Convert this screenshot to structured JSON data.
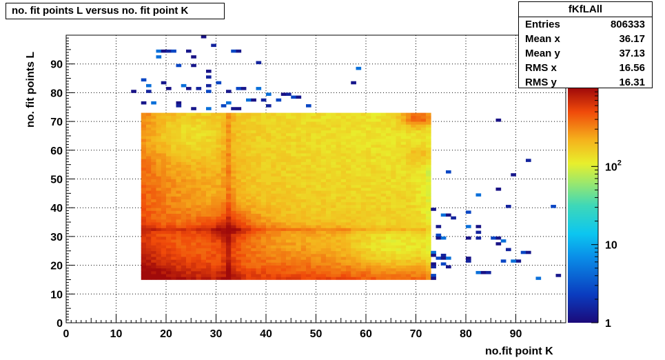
{
  "title": "no. fit points L versus no. fit point K",
  "stats": {
    "name": "fKfLAll",
    "rows": [
      {
        "label": "Entries",
        "value": "806333"
      },
      {
        "label": "Mean x",
        "value": "36.17"
      },
      {
        "label": "Mean y",
        "value": "37.13"
      },
      {
        "label": "RMS x",
        "value": "16.56"
      },
      {
        "label": "RMS y",
        "value": "16.31"
      }
    ]
  },
  "chart_data": {
    "type": "heatmap",
    "title": "no. fit points L versus no. fit point K",
    "xlabel": "no.fit point K",
    "ylabel": "no. fit points  L",
    "xlim": [
      0,
      100
    ],
    "ylim": [
      0,
      100
    ],
    "x_ticks": [
      0,
      10,
      20,
      30,
      40,
      50,
      60,
      70,
      80,
      90
    ],
    "y_ticks": [
      0,
      10,
      20,
      30,
      40,
      50,
      60,
      70,
      80,
      90
    ],
    "grid": true,
    "color_scale": "log",
    "zlim": [
      1,
      1000
    ],
    "z_ticks": [
      {
        "value": 1,
        "label": "1"
      },
      {
        "value": 10,
        "label": "10"
      },
      {
        "value": 100,
        "label": "10^2"
      }
    ],
    "dense_region": {
      "x_range": [
        15,
        73
      ],
      "y_range": [
        15,
        73
      ],
      "peaks": [
        {
          "x": 32,
          "y": 32,
          "level": "max"
        },
        {
          "x": 17,
          "y": 17,
          "level": "high"
        },
        {
          "x": 70,
          "y": 71,
          "level": "high"
        }
      ]
    },
    "sparse_points": [
      [
        27,
        99
      ],
      [
        29,
        96
      ],
      [
        33,
        94
      ],
      [
        34,
        94
      ],
      [
        18,
        94
      ],
      [
        19,
        94
      ],
      [
        20,
        94
      ],
      [
        21,
        94
      ],
      [
        24,
        94
      ],
      [
        18,
        92
      ],
      [
        25,
        92
      ],
      [
        38,
        90
      ],
      [
        22,
        89
      ],
      [
        25,
        89
      ],
      [
        58,
        88
      ],
      [
        28,
        87
      ],
      [
        28,
        85
      ],
      [
        15,
        84
      ],
      [
        19,
        83
      ],
      [
        23,
        82
      ],
      [
        24,
        81
      ],
      [
        28,
        82
      ],
      [
        30,
        83
      ],
      [
        57,
        83
      ],
      [
        16,
        82
      ],
      [
        20,
        81
      ],
      [
        26,
        81
      ],
      [
        34,
        81
      ],
      [
        35,
        81
      ],
      [
        38,
        81
      ],
      [
        13,
        80
      ],
      [
        16,
        80
      ],
      [
        28,
        80
      ],
      [
        32,
        80
      ],
      [
        40,
        79
      ],
      [
        43,
        79
      ],
      [
        44,
        79
      ],
      [
        45,
        78
      ],
      [
        46,
        78
      ],
      [
        36,
        77
      ],
      [
        37,
        77
      ],
      [
        39,
        77
      ],
      [
        42,
        77
      ],
      [
        15,
        76
      ],
      [
        17,
        76
      ],
      [
        22,
        76
      ],
      [
        22,
        75
      ],
      [
        31,
        75
      ],
      [
        33,
        74
      ],
      [
        32,
        76
      ],
      [
        34,
        74
      ],
      [
        40,
        75
      ],
      [
        48,
        75
      ],
      [
        25,
        74
      ],
      [
        28,
        74
      ],
      [
        86,
        70
      ],
      [
        92,
        56
      ],
      [
        76,
        52
      ],
      [
        89,
        51
      ],
      [
        82,
        44
      ],
      [
        86,
        46
      ],
      [
        88,
        40
      ],
      [
        97,
        40
      ],
      [
        73,
        39
      ],
      [
        75,
        37
      ],
      [
        76,
        37
      ],
      [
        77,
        36
      ],
      [
        80,
        38
      ],
      [
        74,
        33
      ],
      [
        80,
        33
      ],
      [
        82,
        33
      ],
      [
        82,
        31
      ],
      [
        74,
        30
      ],
      [
        74,
        29
      ],
      [
        75,
        29
      ],
      [
        80,
        29
      ],
      [
        82,
        29
      ],
      [
        85,
        29
      ],
      [
        86,
        29
      ],
      [
        87,
        28
      ],
      [
        86,
        27
      ],
      [
        88,
        25
      ],
      [
        91,
        24
      ],
      [
        92,
        24
      ],
      [
        73,
        24
      ],
      [
        73,
        23
      ],
      [
        75,
        23
      ],
      [
        74,
        22
      ],
      [
        75,
        22
      ],
      [
        76,
        22
      ],
      [
        80,
        22
      ],
      [
        80,
        21
      ],
      [
        87,
        21
      ],
      [
        90,
        21
      ],
      [
        89,
        21
      ],
      [
        73,
        20
      ],
      [
        73,
        19
      ],
      [
        75,
        20
      ],
      [
        76,
        19
      ],
      [
        82,
        17
      ],
      [
        83,
        17
      ],
      [
        84,
        17
      ],
      [
        73,
        16
      ],
      [
        98,
        16
      ],
      [
        94,
        15
      ],
      [
        73,
        15
      ]
    ]
  }
}
